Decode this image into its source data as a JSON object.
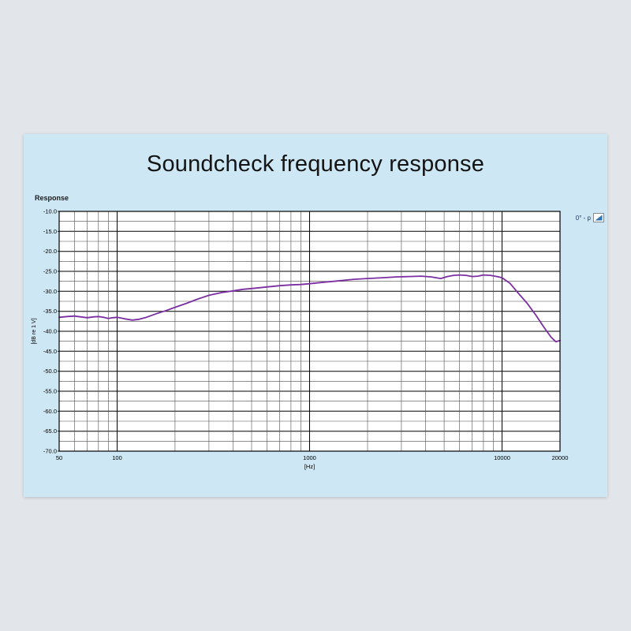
{
  "title": "Soundcheck frequency response",
  "page": {
    "background": "#e2e5ea",
    "panel_background": "#cde7f4"
  },
  "chart": {
    "label": "Response",
    "legend": "0° - p",
    "icons": [
      "triangle-icon"
    ]
  },
  "chart_data": {
    "type": "line",
    "title": "Soundcheck frequency response",
    "x_scale": "log",
    "xlabel": "[Hz]",
    "ylabel": "[dB re 1 V]",
    "xlim": [
      50,
      20000
    ],
    "ylim": [
      -70,
      -10
    ],
    "x_major_ticks": [
      50,
      100,
      1000,
      10000,
      20000
    ],
    "y_major_step": 5,
    "y_minor_step": 2.5,
    "grid": true,
    "legend_position": "top-right",
    "series": [
      {
        "name": "0° - p",
        "color": "#7b2fa3",
        "x": [
          50,
          55,
          60,
          65,
          70,
          75,
          80,
          85,
          90,
          95,
          100,
          110,
          120,
          130,
          140,
          160,
          180,
          200,
          230,
          260,
          300,
          350,
          400,
          450,
          500,
          600,
          700,
          800,
          900,
          1000,
          1200,
          1400,
          1700,
          2000,
          2400,
          2800,
          3300,
          3800,
          4300,
          4800,
          5200,
          5600,
          6000,
          6500,
          7000,
          7500,
          8000,
          8700,
          9400,
          10000,
          11000,
          12000,
          13500,
          15000,
          16500,
          18000,
          19000,
          20000
        ],
        "y": [
          -36.5,
          -36.3,
          -36.2,
          -36.4,
          -36.6,
          -36.4,
          -36.3,
          -36.5,
          -36.8,
          -36.6,
          -36.5,
          -36.9,
          -37.2,
          -37.0,
          -36.6,
          -35.6,
          -34.8,
          -34.0,
          -33.0,
          -32.0,
          -31.0,
          -30.3,
          -29.9,
          -29.5,
          -29.3,
          -28.9,
          -28.6,
          -28.4,
          -28.3,
          -28.1,
          -27.7,
          -27.4,
          -27.0,
          -26.8,
          -26.6,
          -26.4,
          -26.3,
          -26.2,
          -26.4,
          -26.8,
          -26.3,
          -26.0,
          -25.9,
          -26.0,
          -26.3,
          -26.2,
          -25.9,
          -26.0,
          -26.3,
          -26.6,
          -28.0,
          -30.2,
          -33.0,
          -36.0,
          -39.0,
          -41.5,
          -42.6,
          -42.3
        ]
      }
    ]
  }
}
